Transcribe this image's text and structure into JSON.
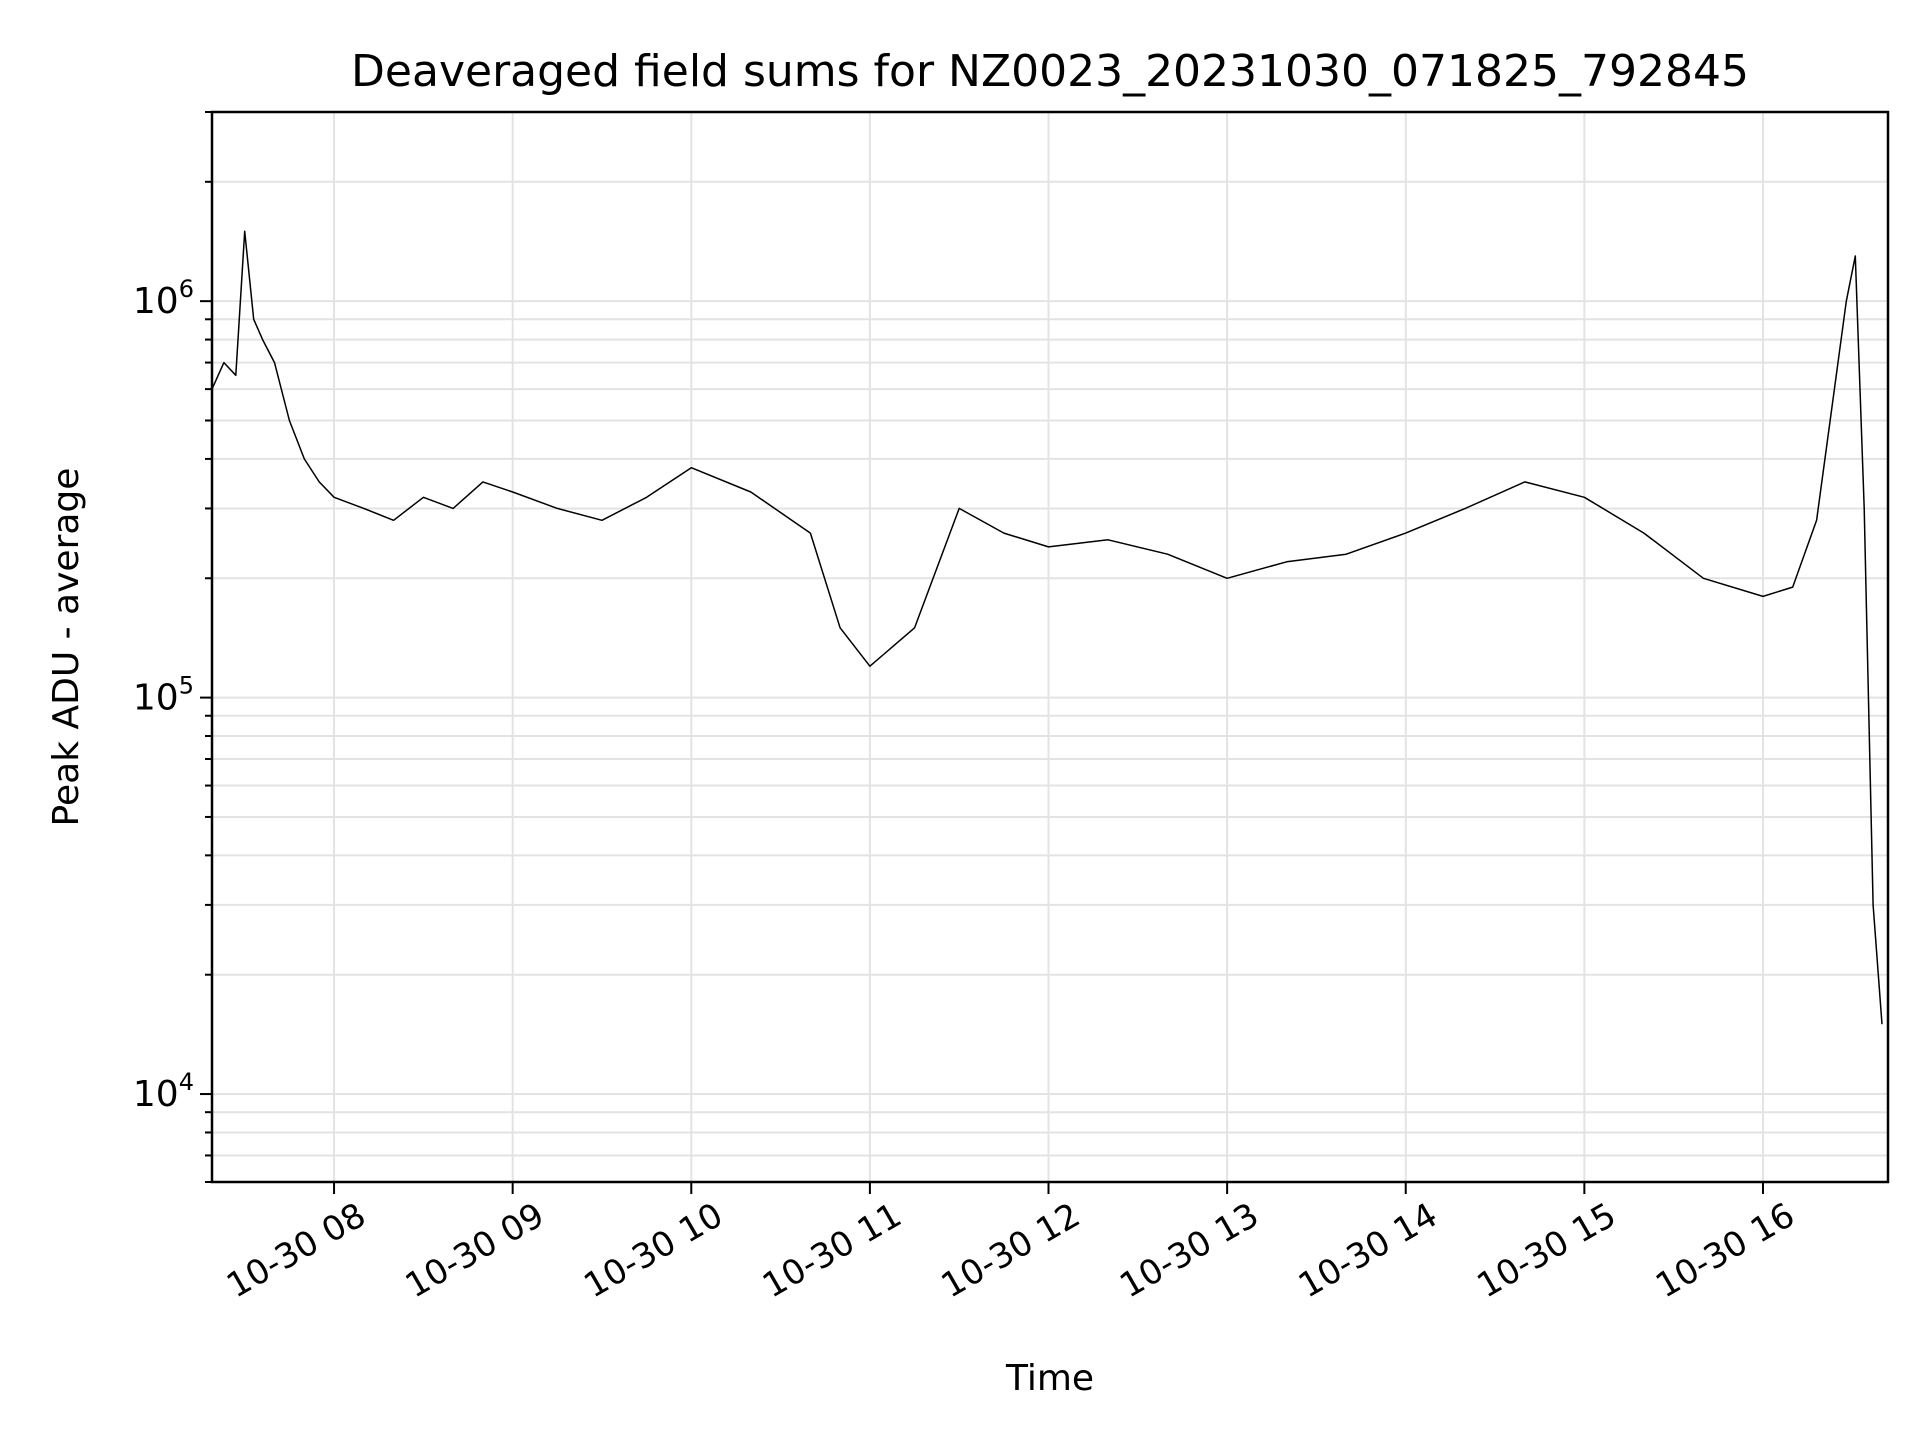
{
  "chart_data": {
    "type": "line",
    "title": "Deaveraged field sums for NZ0023_20231030_071825_792845",
    "xlabel": "Time",
    "ylabel": "Peak ADU - average",
    "xlim": [
      "2023-10-30 07:19",
      "2023-10-30 16:42"
    ],
    "ylim": [
      6000,
      3000000
    ],
    "yscale": "log",
    "grid": true,
    "line_color": "#000000",
    "x_ticks": [
      "10-30 08",
      "10-30 09",
      "10-30 10",
      "10-30 11",
      "10-30 12",
      "10-30 13",
      "10-30 14",
      "10-30 15",
      "10-30 16"
    ],
    "y_ticks": [
      {
        "base": "10",
        "exp": "4",
        "value": 10000
      },
      {
        "base": "10",
        "exp": "5",
        "value": 100000
      },
      {
        "base": "10",
        "exp": "6",
        "value": 1000000
      }
    ],
    "series": [
      {
        "x": [
          "2023-10-30 07:19",
          "2023-10-30 07:23",
          "2023-10-30 07:27",
          "2023-10-30 07:30",
          "2023-10-30 07:33",
          "2023-10-30 07:36",
          "2023-10-30 07:40",
          "2023-10-30 07:45",
          "2023-10-30 07:50",
          "2023-10-30 07:55",
          "2023-10-30 08:00",
          "2023-10-30 08:10",
          "2023-10-30 08:20",
          "2023-10-30 08:30",
          "2023-10-30 08:40",
          "2023-10-30 08:50",
          "2023-10-30 09:00",
          "2023-10-30 09:15",
          "2023-10-30 09:30",
          "2023-10-30 09:45",
          "2023-10-30 10:00",
          "2023-10-30 10:20",
          "2023-10-30 10:40",
          "2023-10-30 10:50",
          "2023-10-30 11:00",
          "2023-10-30 11:15",
          "2023-10-30 11:30",
          "2023-10-30 11:45",
          "2023-10-30 12:00",
          "2023-10-30 12:20",
          "2023-10-30 12:40",
          "2023-10-30 13:00",
          "2023-10-30 13:20",
          "2023-10-30 13:40",
          "2023-10-30 14:00",
          "2023-10-30 14:20",
          "2023-10-30 14:40",
          "2023-10-30 15:00",
          "2023-10-30 15:20",
          "2023-10-30 15:40",
          "2023-10-30 16:00",
          "2023-10-30 16:10",
          "2023-10-30 16:18",
          "2023-10-30 16:24",
          "2023-10-30 16:28",
          "2023-10-30 16:31",
          "2023-10-30 16:34",
          "2023-10-30 16:37",
          "2023-10-30 16:40"
        ],
        "y": [
          600000,
          700000,
          650000,
          1500000,
          900000,
          800000,
          700000,
          500000,
          400000,
          350000,
          320000,
          300000,
          280000,
          320000,
          300000,
          350000,
          330000,
          300000,
          280000,
          320000,
          380000,
          330000,
          260000,
          150000,
          120000,
          150000,
          300000,
          260000,
          240000,
          250000,
          230000,
          200000,
          220000,
          230000,
          260000,
          300000,
          350000,
          320000,
          260000,
          200000,
          180000,
          190000,
          280000,
          600000,
          1000000,
          1300000,
          300000,
          30000,
          15000
        ]
      }
    ]
  }
}
